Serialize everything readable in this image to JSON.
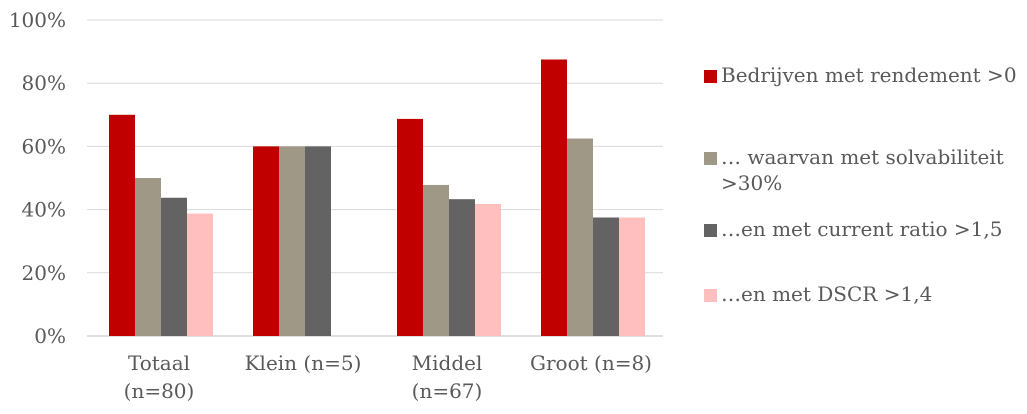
{
  "chart_data": {
    "type": "bar",
    "categories": [
      [
        "Totaal",
        "(n=80)"
      ],
      [
        "Klein (n=5)"
      ],
      [
        "Middel",
        "(n=67)"
      ],
      [
        "Groot (n=8)"
      ]
    ],
    "series": [
      {
        "name": "Bedrijven met rendement >0",
        "color": "#C00000",
        "values": [
          70,
          60,
          68.7,
          87.5
        ]
      },
      {
        "name": "… waarvan met solvabiliteit >30%",
        "color": "#A09886",
        "values": [
          50,
          60,
          47.8,
          62.5
        ]
      },
      {
        "name": "…en met current ratio >1,5",
        "color": "#636363",
        "values": [
          43.75,
          60,
          43.3,
          37.5
        ]
      },
      {
        "name": "…en met DSCR >1,4",
        "color": "#FFBFBF",
        "values": [
          38.75,
          0,
          41.8,
          37.5
        ]
      }
    ],
    "y_ticks": [
      "0%",
      "20%",
      "40%",
      "60%",
      "80%",
      "100%"
    ],
    "ylim": [
      0,
      100
    ],
    "grid": true,
    "legend_position": "right"
  }
}
